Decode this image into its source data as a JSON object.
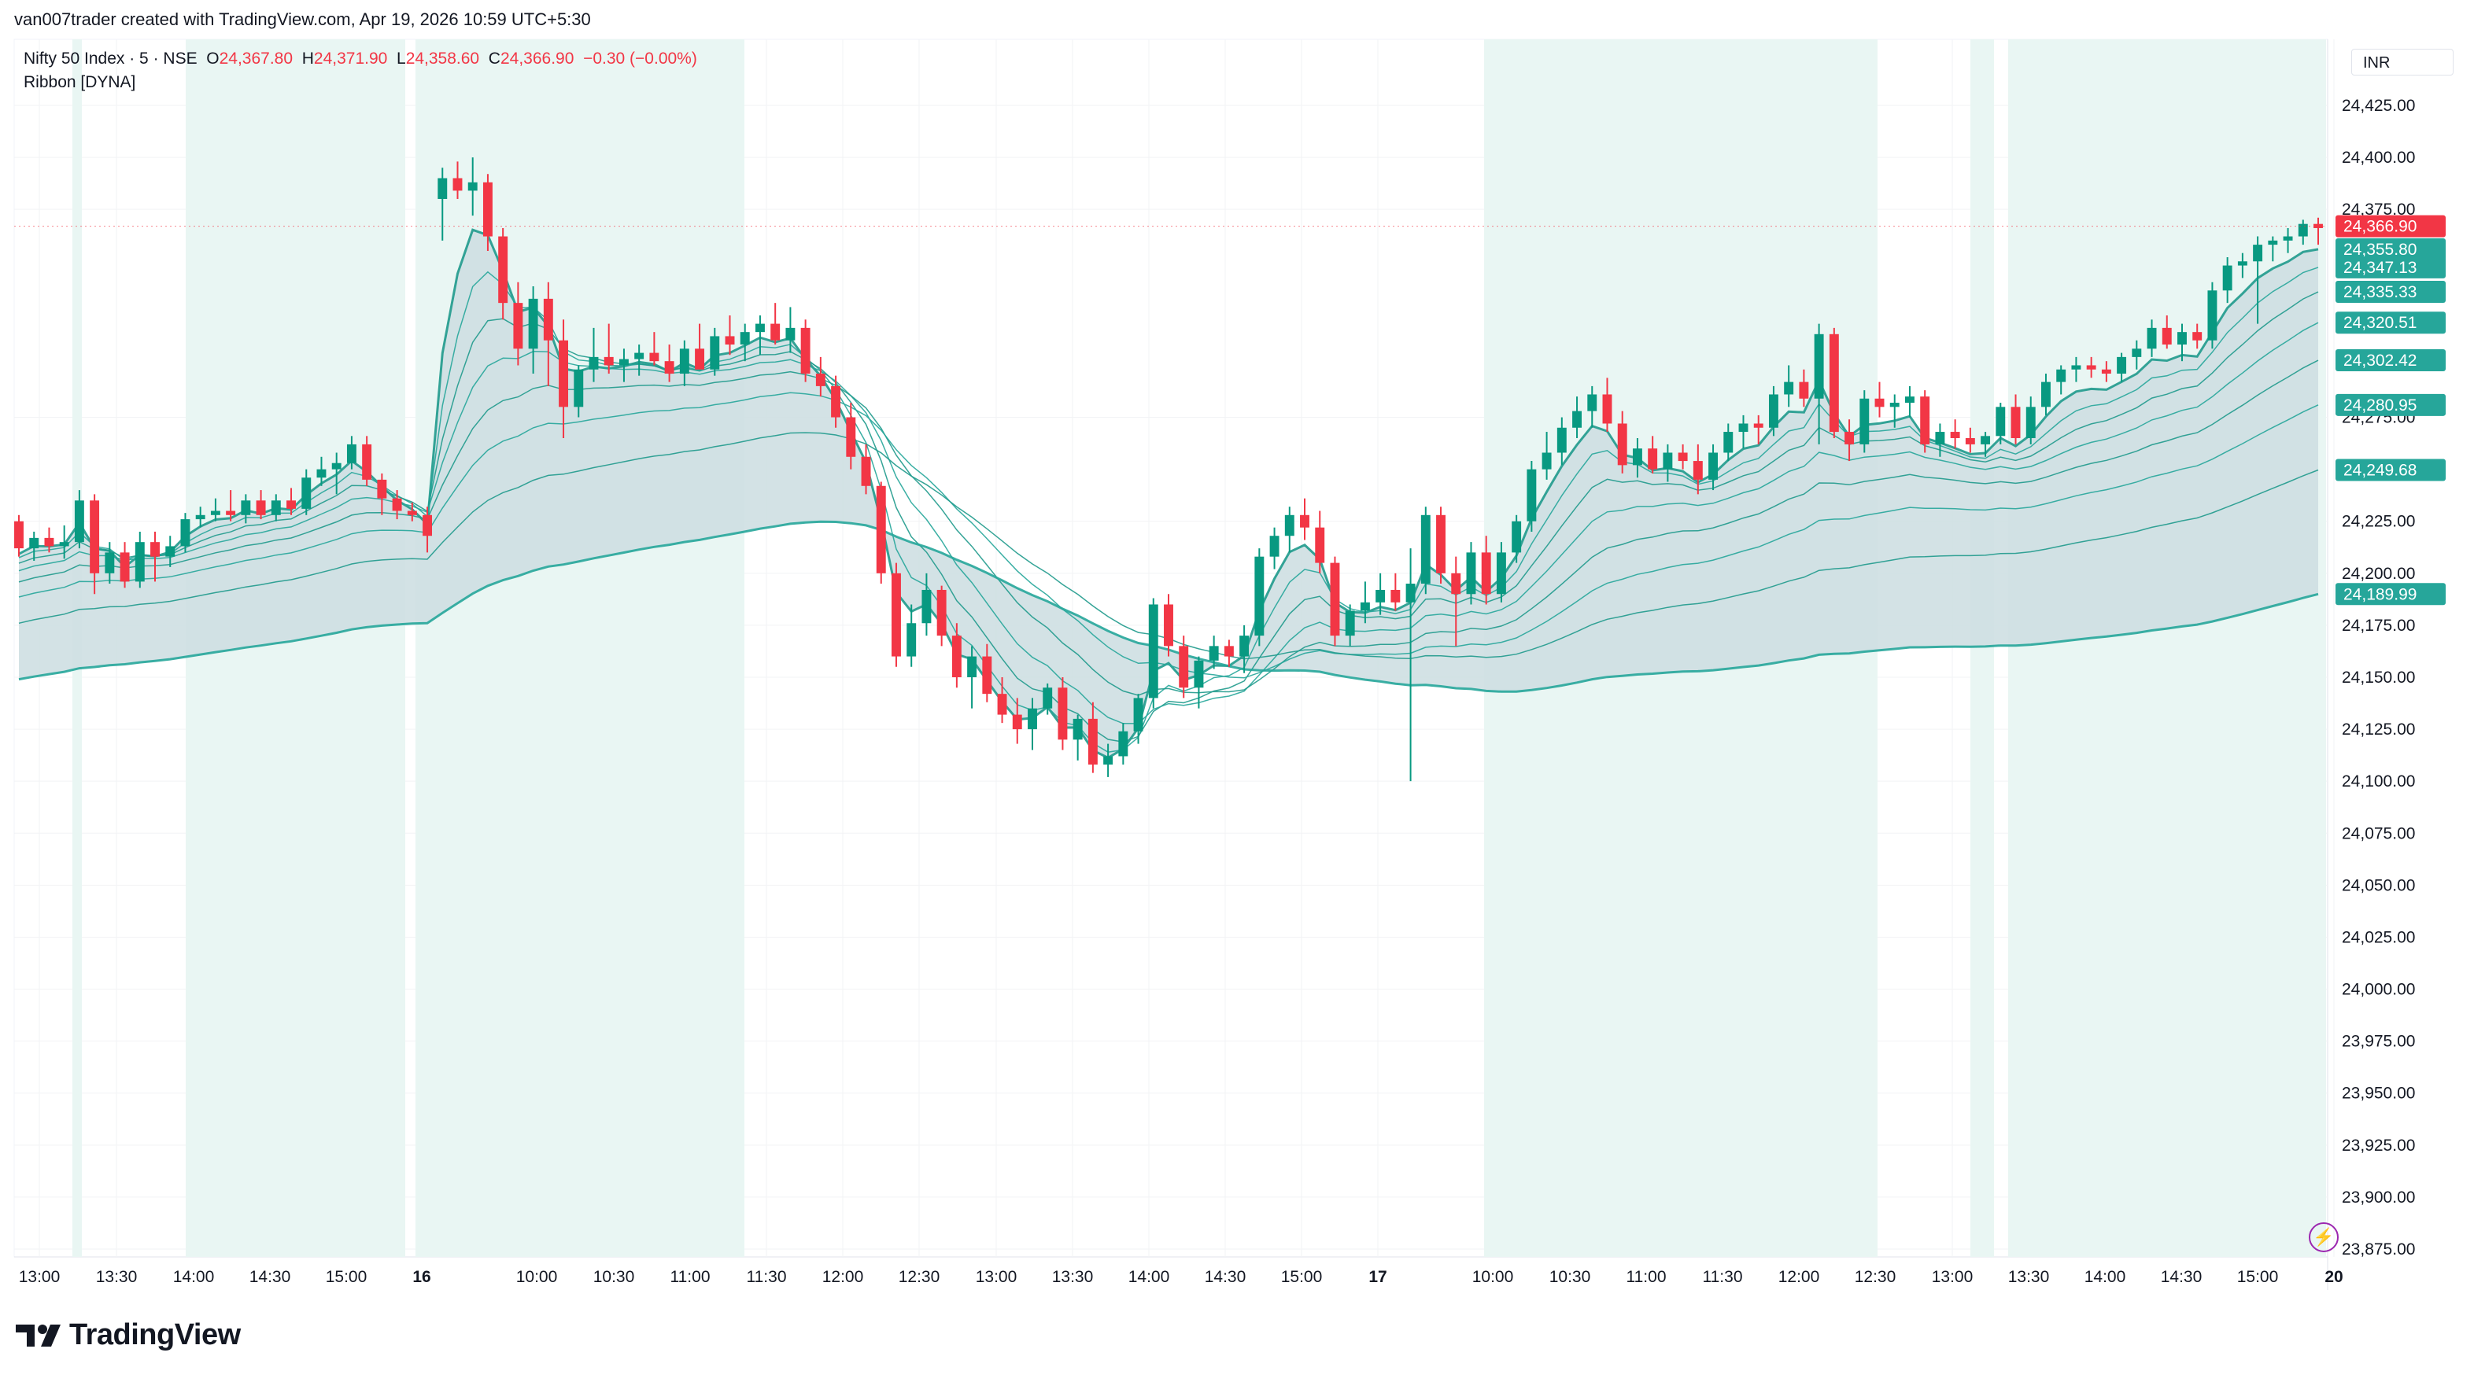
{
  "header": {
    "attribution": "van007trader created with TradingView.com, Apr 19, 2026 10:59 UTC+5:30"
  },
  "legend": {
    "symbol": "Nifty 50 Index · 5 · NSE",
    "open_label": "O",
    "open": "24,367.80",
    "high_label": "H",
    "high": "24,371.90",
    "low_label": "L",
    "low": "24,358.60",
    "close_label": "C",
    "close": "24,366.90",
    "change": "−0.30 (−0.00%)",
    "indicator": "Ribbon [DYNA]"
  },
  "price_axis": {
    "currency": "INR",
    "ticks": [
      "24,425.00",
      "24,400.00",
      "24,375.00",
      "24,275.00",
      "24,225.00",
      "24,200.00",
      "24,175.00",
      "24,150.00",
      "24,125.00",
      "24,100.00",
      "24,075.00",
      "24,050.00",
      "24,025.00",
      "24,000.00",
      "23,975.00",
      "23,950.00",
      "23,925.00",
      "23,900.00",
      "23,875.00"
    ],
    "last_price_label": "24,366.90",
    "ribbon_labels": [
      "24,355.80",
      "24,347.13",
      "24,335.33",
      "24,320.51",
      "24,302.42",
      "24,280.95",
      "24,249.68",
      "24,189.99"
    ]
  },
  "time_axis": {
    "ticks": [
      "13:00",
      "13:30",
      "14:00",
      "14:30",
      "15:00",
      "16",
      "10:00",
      "10:30",
      "11:00",
      "11:30",
      "12:00",
      "12:30",
      "13:00",
      "13:30",
      "14:00",
      "14:30",
      "15:00",
      "17",
      "10:00",
      "10:30",
      "11:00",
      "11:30",
      "12:00",
      "12:30",
      "13:00",
      "13:30",
      "14:00",
      "14:30",
      "15:00",
      "20"
    ]
  },
  "brand": {
    "name": "TradingView"
  },
  "colors": {
    "up": "#089981",
    "down": "#f23645",
    "ribbon_bull": "#26a69a",
    "ribbon_bear": "#808080",
    "bull_band": "#e9f6f3",
    "last_price": "#f23645"
  },
  "icons": {
    "flash": "lightning-icon",
    "logo": "tradingview-logo-icon"
  },
  "chart_data": {
    "type": "candlestick",
    "symbol": "Nifty 50 Index",
    "interval": "5",
    "y_range": [
      23875,
      24435
    ],
    "gridlines": true,
    "candles": [
      [
        24225,
        24228,
        24208,
        24212
      ],
      [
        24212,
        24220,
        24206,
        24217
      ],
      [
        24217,
        24222,
        24210,
        24213
      ],
      [
        24213,
        24223,
        24207,
        24215
      ],
      [
        24215,
        24240,
        24212,
        24235
      ],
      [
        24235,
        24238,
        24190,
        24200
      ],
      [
        24200,
        24215,
        24195,
        24210
      ],
      [
        24210,
        24215,
        24193,
        24196
      ],
      [
        24196,
        24220,
        24193,
        24215
      ],
      [
        24215,
        24220,
        24196,
        24208
      ],
      [
        24208,
        24218,
        24203,
        24213
      ],
      [
        24213,
        24229,
        24210,
        24226
      ],
      [
        24226,
        24232,
        24222,
        24228
      ],
      [
        24228,
        24236,
        24225,
        24230
      ],
      [
        24230,
        24240,
        24225,
        24228
      ],
      [
        24228,
        24238,
        24224,
        24235
      ],
      [
        24235,
        24240,
        24226,
        24228
      ],
      [
        24228,
        24238,
        24225,
        24235
      ],
      [
        24235,
        24241,
        24228,
        24231
      ],
      [
        24231,
        24250,
        24228,
        24246
      ],
      [
        24246,
        24256,
        24242,
        24250
      ],
      [
        24250,
        24258,
        24238,
        24253
      ],
      [
        24253,
        24266,
        24250,
        24262
      ],
      [
        24262,
        24266,
        24242,
        24245
      ],
      [
        24245,
        24248,
        24228,
        24236
      ],
      [
        24236,
        24240,
        24226,
        24230
      ],
      [
        24230,
        24234,
        24225,
        24228
      ],
      [
        24228,
        24232,
        24210,
        24218
      ],
      [
        24380,
        24395,
        24360,
        24390
      ],
      [
        24390,
        24398,
        24380,
        24384
      ],
      [
        24384,
        24400,
        24372,
        24388
      ],
      [
        24388,
        24392,
        24355,
        24362
      ],
      [
        24362,
        24366,
        24322,
        24330
      ],
      [
        24330,
        24340,
        24300,
        24308
      ],
      [
        24308,
        24338,
        24296,
        24332
      ],
      [
        24332,
        24340,
        24290,
        24312
      ],
      [
        24312,
        24322,
        24265,
        24280
      ],
      [
        24280,
        24300,
        24275,
        24298
      ],
      [
        24298,
        24318,
        24292,
        24304
      ],
      [
        24304,
        24320,
        24296,
        24300
      ],
      [
        24300,
        24308,
        24292,
        24303
      ],
      [
        24303,
        24310,
        24295,
        24306
      ],
      [
        24306,
        24316,
        24300,
        24302
      ],
      [
        24302,
        24310,
        24292,
        24296
      ],
      [
        24296,
        24312,
        24290,
        24308
      ],
      [
        24308,
        24320,
        24300,
        24298
      ],
      [
        24298,
        24318,
        24295,
        24314
      ],
      [
        24314,
        24324,
        24305,
        24310
      ],
      [
        24310,
        24320,
        24302,
        24316
      ],
      [
        24316,
        24324,
        24305,
        24320
      ],
      [
        24320,
        24330,
        24310,
        24312
      ],
      [
        24312,
        24328,
        24306,
        24318
      ],
      [
        24318,
        24322,
        24292,
        24296
      ],
      [
        24296,
        24304,
        24285,
        24290
      ],
      [
        24290,
        24295,
        24270,
        24275
      ],
      [
        24275,
        24282,
        24250,
        24256
      ],
      [
        24256,
        24262,
        24238,
        24242
      ],
      [
        24242,
        24244,
        24195,
        24200
      ],
      [
        24200,
        24205,
        24155,
        24160
      ],
      [
        24160,
        24185,
        24155,
        24176
      ],
      [
        24176,
        24200,
        24170,
        24192
      ],
      [
        24192,
        24194,
        24165,
        24170
      ],
      [
        24170,
        24176,
        24145,
        24150
      ],
      [
        24150,
        24165,
        24135,
        24160
      ],
      [
        24160,
        24166,
        24138,
        24142
      ],
      [
        24142,
        24150,
        24128,
        24132
      ],
      [
        24132,
        24140,
        24118,
        24125
      ],
      [
        24125,
        24140,
        24115,
        24135
      ],
      [
        24135,
        24147,
        24132,
        24145
      ],
      [
        24145,
        24150,
        24115,
        24120
      ],
      [
        24120,
        24132,
        24110,
        24130
      ],
      [
        24130,
        24138,
        24104,
        24108
      ],
      [
        24108,
        24118,
        24102,
        24112
      ],
      [
        24112,
        24128,
        24108,
        24124
      ],
      [
        24124,
        24142,
        24118,
        24140
      ],
      [
        24140,
        24188,
        24135,
        24185
      ],
      [
        24185,
        24190,
        24160,
        24165
      ],
      [
        24165,
        24170,
        24140,
        24145
      ],
      [
        24145,
        24160,
        24135,
        24158
      ],
      [
        24158,
        24170,
        24154,
        24165
      ],
      [
        24165,
        24168,
        24155,
        24160
      ],
      [
        24160,
        24175,
        24152,
        24170
      ],
      [
        24170,
        24212,
        24165,
        24208
      ],
      [
        24208,
        24222,
        24202,
        24218
      ],
      [
        24218,
        24232,
        24210,
        24228
      ],
      [
        24228,
        24236,
        24216,
        24222
      ],
      [
        24222,
        24230,
        24200,
        24205
      ],
      [
        24205,
        24208,
        24165,
        24170
      ],
      [
        24170,
        24185,
        24165,
        24182
      ],
      [
        24182,
        24196,
        24176,
        24186
      ],
      [
        24186,
        24200,
        24180,
        24192
      ],
      [
        24192,
        24200,
        24182,
        24186
      ],
      [
        24186,
        24212,
        24100,
        24195
      ],
      [
        24195,
        24232,
        24190,
        24228
      ],
      [
        24228,
        24232,
        24195,
        24200
      ],
      [
        24200,
        24208,
        24165,
        24190
      ],
      [
        24190,
        24215,
        24185,
        24210
      ],
      [
        24210,
        24218,
        24185,
        24190
      ],
      [
        24190,
        24215,
        24186,
        24210
      ],
      [
        24210,
        24228,
        24205,
        24225
      ],
      [
        24225,
        24254,
        24220,
        24250
      ],
      [
        24250,
        24268,
        24245,
        24258
      ],
      [
        24258,
        24275,
        24252,
        24270
      ],
      [
        24270,
        24285,
        24265,
        24278
      ],
      [
        24278,
        24290,
        24270,
        24286
      ],
      [
        24286,
        24294,
        24268,
        24272
      ],
      [
        24272,
        24278,
        24248,
        24252
      ],
      [
        24252,
        24265,
        24246,
        24260
      ],
      [
        24260,
        24266,
        24248,
        24250
      ],
      [
        24250,
        24262,
        24244,
        24258
      ],
      [
        24258,
        24262,
        24250,
        24254
      ],
      [
        24254,
        24262,
        24238,
        24245
      ],
      [
        24245,
        24262,
        24240,
        24258
      ],
      [
        24258,
        24272,
        24254,
        24268
      ],
      [
        24268,
        24276,
        24260,
        24272
      ],
      [
        24272,
        24276,
        24262,
        24270
      ],
      [
        24270,
        24290,
        24266,
        24286
      ],
      [
        24286,
        24300,
        24280,
        24292
      ],
      [
        24292,
        24298,
        24280,
        24284
      ],
      [
        24284,
        24320,
        24262,
        24315
      ],
      [
        24315,
        24318,
        24265,
        24268
      ],
      [
        24268,
        24274,
        24254,
        24262
      ],
      [
        24262,
        24288,
        24258,
        24284
      ],
      [
        24284,
        24292,
        24275,
        24280
      ],
      [
        24280,
        24286,
        24270,
        24282
      ],
      [
        24282,
        24290,
        24275,
        24285
      ],
      [
        24285,
        24288,
        24258,
        24262
      ],
      [
        24262,
        24272,
        24256,
        24268
      ],
      [
        24268,
        24274,
        24260,
        24265
      ],
      [
        24265,
        24270,
        24258,
        24262
      ],
      [
        24262,
        24268,
        24256,
        24266
      ],
      [
        24266,
        24282,
        24262,
        24280
      ],
      [
        24280,
        24286,
        24262,
        24265
      ],
      [
        24265,
        24285,
        24262,
        24280
      ],
      [
        24280,
        24296,
        24276,
        24292
      ],
      [
        24292,
        24300,
        24286,
        24298
      ],
      [
        24298,
        24304,
        24292,
        24300
      ],
      [
        24300,
        24304,
        24294,
        24298
      ],
      [
        24298,
        24302,
        24292,
        24296
      ],
      [
        24296,
        24306,
        24292,
        24304
      ],
      [
        24304,
        24312,
        24298,
        24308
      ],
      [
        24308,
        24322,
        24304,
        24318
      ],
      [
        24318,
        24324,
        24308,
        24310
      ],
      [
        24310,
        24320,
        24302,
        24316
      ],
      [
        24316,
        24320,
        24308,
        24312
      ],
      [
        24312,
        24340,
        24308,
        24336
      ],
      [
        24336,
        24352,
        24330,
        24348
      ],
      [
        24348,
        24354,
        24342,
        24350
      ],
      [
        24350,
        24362,
        24320,
        24358
      ],
      [
        24358,
        24362,
        24350,
        24360
      ],
      [
        24360,
        24366,
        24354,
        24362
      ],
      [
        24362,
        24370,
        24358,
        24368
      ],
      [
        24368,
        24371,
        24358,
        24366
      ]
    ],
    "last_price": 24366.9,
    "ribbon_last_values": [
      24355.8,
      24347.13,
      24335.33,
      24320.51,
      24302.42,
      24280.95,
      24249.68,
      24189.99
    ]
  }
}
